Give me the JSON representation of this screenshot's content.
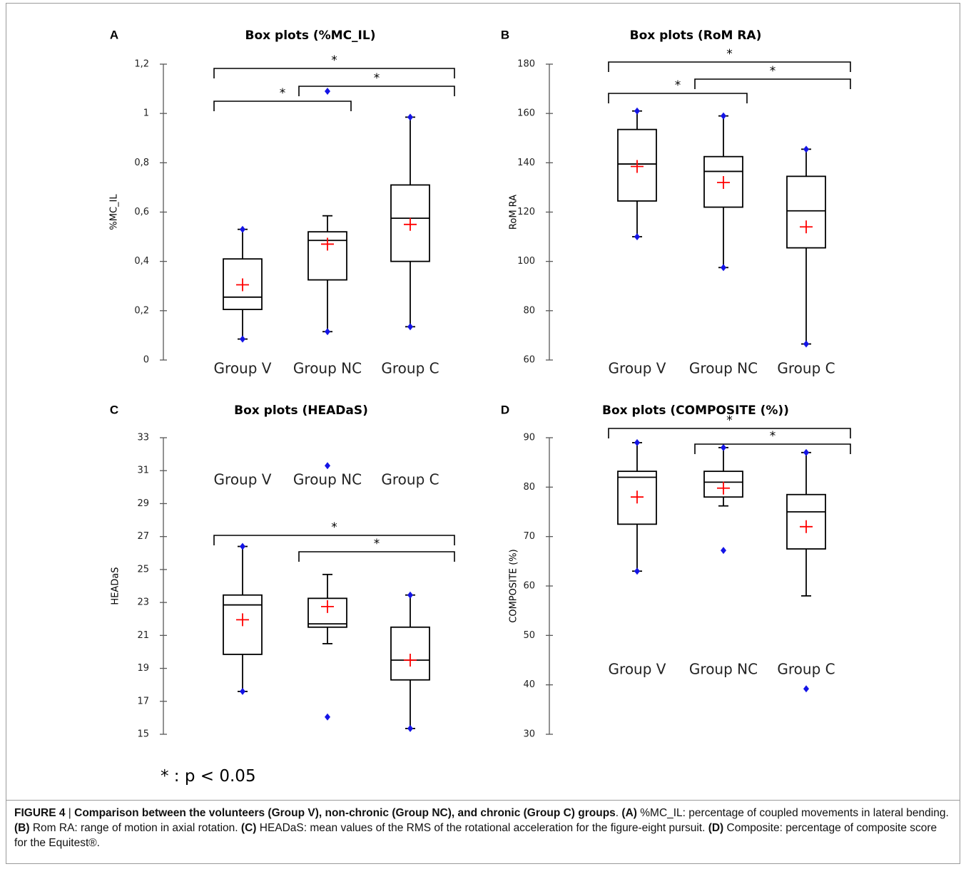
{
  "significance_note": "* : p < 0.05",
  "caption": {
    "figure_label": "FIGURE 4",
    "separator": " | ",
    "bold_title": "Comparison between the volunteers (Group V), non-chronic (Group NC), and chronic (Group C) groups",
    "after_title": ". ",
    "a_tag": "(A)",
    "a_text": " %MC_IL: percentage of coupled movements in lateral bending. ",
    "b_tag": "(B)",
    "b_text": " Rom RA: range of motion in axial rotation. ",
    "c_tag": "(C)",
    "c_text": " HEADaS: mean values of the RMS of the rotational acceleration for the figure-eight pursuit. ",
    "d_tag": "(D)",
    "d_text": " Composite: percentage of composite score for the Equitest®."
  },
  "colors": {
    "box_stroke": "#000000",
    "mean_marker": "#ff0000",
    "extreme_marker": "#1414e6",
    "axis": "#595959",
    "background": "#ffffff"
  },
  "chart_data": [
    {
      "panel": "A",
      "type": "box",
      "title": "Box plots (%MC_IL)",
      "ylabel": "%MC_IL",
      "ylim": [
        0,
        1.2
      ],
      "ticks": [
        0,
        0.2,
        0.4,
        0.6,
        0.8,
        1,
        1.2
      ],
      "tick_labels": [
        "0",
        "0,2",
        "0,4",
        "0,6",
        "0,8",
        "1",
        "1,2"
      ],
      "categories": [
        "Group V",
        "Group NC",
        "Group C"
      ],
      "boxes": [
        {
          "group": "Group V",
          "q1": 0.205,
          "median": 0.255,
          "q3": 0.41,
          "whisker_low": 0.085,
          "whisker_high": 0.53,
          "mean": 0.305,
          "outliers_low": [
            0.085
          ],
          "outliers_high": [
            0.53
          ]
        },
        {
          "group": "Group NC",
          "q1": 0.325,
          "median": 0.485,
          "q3": 0.52,
          "whisker_low": 0.115,
          "whisker_high": 0.585,
          "mean": 0.47,
          "outliers_low": [
            0.115
          ],
          "outliers_high": [
            1.09
          ]
        },
        {
          "group": "Group C",
          "q1": 0.4,
          "median": 0.575,
          "q3": 0.71,
          "whisker_low": 0.135,
          "whisker_high": 0.985,
          "mean": 0.55,
          "outliers_low": [
            0.135
          ],
          "outliers_high": [
            0.985
          ]
        }
      ],
      "significance": [
        {
          "from": 0,
          "to": 2,
          "label": "*"
        },
        {
          "from": 1,
          "to": 2,
          "label": "*"
        },
        {
          "from": 0,
          "to": 1,
          "label": "*"
        }
      ]
    },
    {
      "panel": "B",
      "type": "box",
      "title": "Box plots (RoM RA)",
      "ylabel": "RoM RA",
      "ylim": [
        60,
        180
      ],
      "ticks": [
        60,
        80,
        100,
        120,
        140,
        160,
        180
      ],
      "tick_labels": [
        "60",
        "80",
        "100",
        "120",
        "140",
        "160",
        "180"
      ],
      "categories": [
        "Group V",
        "Group NC",
        "Group C"
      ],
      "boxes": [
        {
          "group": "Group V",
          "q1": 124.5,
          "median": 139.5,
          "q3": 153.5,
          "whisker_low": 110,
          "whisker_high": 161,
          "mean": 138.5,
          "outliers_low": [
            110
          ],
          "outliers_high": [
            161
          ]
        },
        {
          "group": "Group NC",
          "q1": 122,
          "median": 136.5,
          "q3": 142.5,
          "whisker_low": 97.5,
          "whisker_high": 159,
          "mean": 132,
          "outliers_low": [
            97.5
          ],
          "outliers_high": [
            159
          ]
        },
        {
          "group": "Group C",
          "q1": 105.5,
          "median": 120.5,
          "q3": 134.5,
          "whisker_low": 66.5,
          "whisker_high": 145.5,
          "mean": 114,
          "outliers_low": [
            66.5
          ],
          "outliers_high": [
            145.5
          ]
        }
      ],
      "significance": [
        {
          "from": 0,
          "to": 2,
          "label": "*"
        },
        {
          "from": 1,
          "to": 2,
          "label": "*"
        },
        {
          "from": 0,
          "to": 1,
          "label": "*"
        }
      ]
    },
    {
      "panel": "C",
      "type": "box",
      "title": "Box plots (HEADaS)",
      "ylabel": "HEADaS",
      "ylim": [
        15,
        33
      ],
      "ticks": [
        15,
        17,
        19,
        21,
        23,
        25,
        27,
        29,
        31,
        33
      ],
      "tick_labels": [
        "15",
        "17",
        "19",
        "21",
        "23",
        "25",
        "27",
        "29",
        "31",
        "33"
      ],
      "categories": [
        "Group V",
        "Group NC",
        "Group C"
      ],
      "category_labels_at": 30.4,
      "boxes": [
        {
          "group": "Group V",
          "q1": 19.85,
          "median": 22.85,
          "q3": 23.45,
          "whisker_low": 17.6,
          "whisker_high": 26.4,
          "mean": 21.95,
          "outliers_low": [
            17.6
          ],
          "outliers_high": [
            26.4
          ]
        },
        {
          "group": "Group NC",
          "q1": 21.5,
          "median": 21.7,
          "q3": 23.25,
          "whisker_low": 20.5,
          "whisker_high": 24.7,
          "mean": 22.75,
          "outliers_low": [
            16.05
          ],
          "outliers_high": [
            31.3
          ]
        },
        {
          "group": "Group C",
          "q1": 18.3,
          "median": 19.5,
          "q3": 21.5,
          "whisker_low": 15.35,
          "whisker_high": 23.45,
          "mean": 19.5,
          "outliers_low": [
            15.35
          ],
          "outliers_high": [
            23.45
          ]
        }
      ],
      "significance": [
        {
          "from": 0,
          "to": 2,
          "label": "*"
        },
        {
          "from": 1,
          "to": 2,
          "label": "*"
        }
      ]
    },
    {
      "panel": "D",
      "type": "box",
      "title": "Box plots (COMPOSITE (%))",
      "ylabel": "COMPOSITE (%)",
      "ylim": [
        30,
        90
      ],
      "ticks": [
        30,
        40,
        50,
        60,
        70,
        80,
        90
      ],
      "tick_labels": [
        "30",
        "40",
        "50",
        "60",
        "70",
        "80",
        "90"
      ],
      "categories": [
        "Group V",
        "Group NC",
        "Group C"
      ],
      "category_labels_at": 43,
      "boxes": [
        {
          "group": "Group V",
          "q1": 72.5,
          "median": 82,
          "q3": 83.2,
          "whisker_low": 63,
          "whisker_high": 89,
          "mean": 78,
          "outliers_low": [
            63
          ],
          "outliers_high": [
            89
          ]
        },
        {
          "group": "Group NC",
          "q1": 78,
          "median": 81,
          "q3": 83.2,
          "whisker_low": 76.2,
          "whisker_high": 88,
          "mean": 79.8,
          "outliers_low": [
            67.2
          ],
          "outliers_high": [
            88
          ]
        },
        {
          "group": "Group C",
          "q1": 67.5,
          "median": 75,
          "q3": 78.5,
          "whisker_low": 58,
          "whisker_high": 87,
          "mean": 72,
          "outliers_low": [
            39.2
          ],
          "outliers_high": [
            87
          ]
        }
      ],
      "significance": [
        {
          "from": 0,
          "to": 2,
          "label": "*"
        },
        {
          "from": 1,
          "to": 2,
          "label": "*"
        }
      ]
    }
  ]
}
